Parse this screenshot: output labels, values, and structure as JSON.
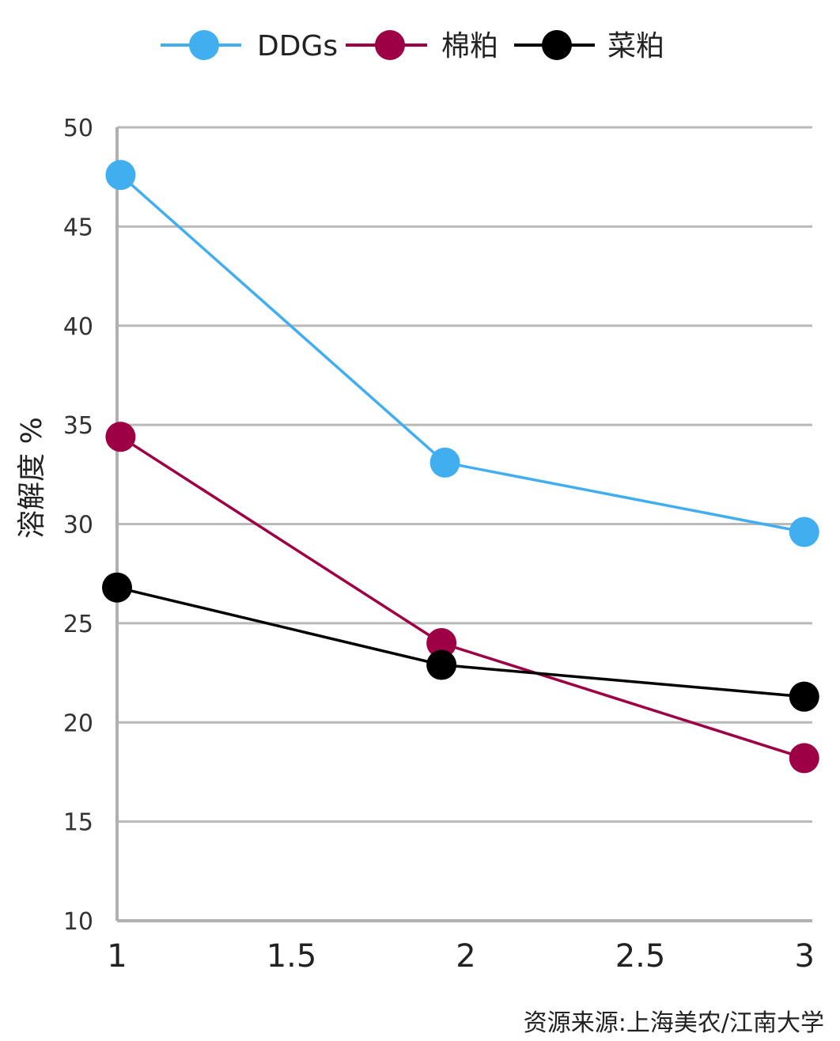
{
  "chart_data": {
    "type": "line",
    "xlabel": "",
    "ylabel": "溶解度 %",
    "xlim": [
      1,
      3
    ],
    "ylim": [
      10,
      50
    ],
    "x_ticks": [
      "1",
      "1.5",
      "2",
      "2.5",
      "3"
    ],
    "y_ticks": [
      "50",
      "45",
      "40",
      "35",
      "30",
      "25",
      "20",
      "15",
      "10"
    ],
    "grid": "horizontal",
    "legend_position": "top-center",
    "series": [
      {
        "name": "DDGs",
        "color": "#41aef0",
        "x": [
          1.01,
          1.94,
          2.97
        ],
        "y": [
          47.6,
          33.1,
          29.6
        ]
      },
      {
        "name": "棉粕",
        "color": "#9e0045",
        "x": [
          1.01,
          1.93,
          2.97
        ],
        "y": [
          34.4,
          24.0,
          18.2
        ]
      },
      {
        "name": "菜粕",
        "color": "#000000",
        "x": [
          1.0,
          1.93,
          2.97
        ],
        "y": [
          26.8,
          22.9,
          21.3
        ]
      }
    ]
  },
  "source": "资源来源:上海美农/江南大学"
}
